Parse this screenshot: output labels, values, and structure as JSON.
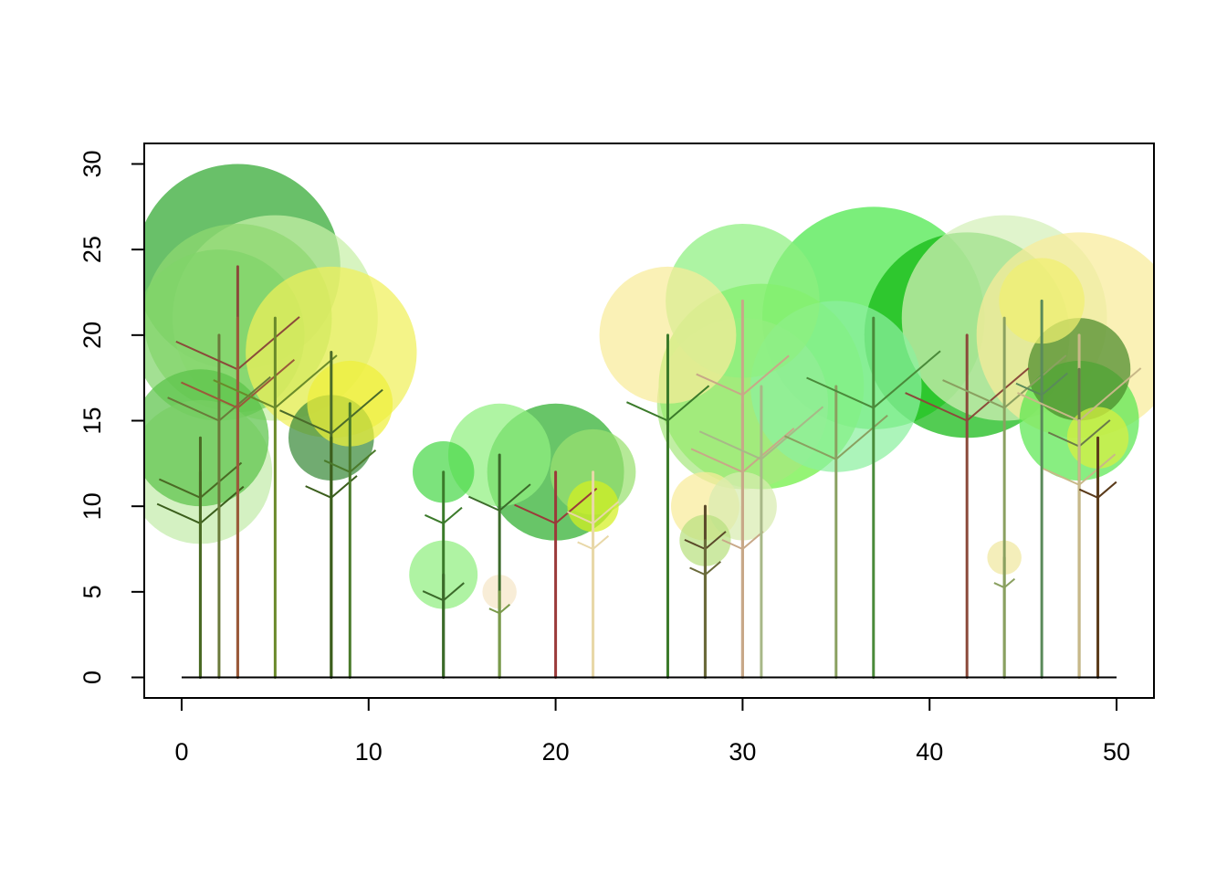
{
  "chart_data": {
    "type": "scatter",
    "title": "",
    "xlabel": "",
    "ylabel": "",
    "xlim": [
      -2,
      52
    ],
    "ylim": [
      -1.2,
      31.2
    ],
    "x_ticks": [
      0,
      10,
      20,
      30,
      40,
      50
    ],
    "x_tick_labels": [
      "0",
      "10",
      "20",
      "30",
      "40",
      "50"
    ],
    "y_ticks": [
      0,
      5,
      10,
      15,
      20,
      25,
      30
    ],
    "y_tick_labels": [
      "0",
      "5",
      "10",
      "15",
      "20",
      "25",
      "30"
    ],
    "grid": false,
    "ground_line": {
      "x_from": 0,
      "x_to": 50,
      "y": 0
    },
    "trees": [
      {
        "x": 1,
        "height": 12,
        "crown_radius": 4.2,
        "crown_color": "#c4ecaa",
        "trunk_color": "#3b5e1c"
      },
      {
        "x": 1,
        "height": 14,
        "crown_radius": 4.0,
        "crown_color": "#5bc44a",
        "trunk_color": "#4a6a24"
      },
      {
        "x": 2,
        "height": 20,
        "crown_radius": 5.0,
        "crown_color": "#7fd46a",
        "trunk_color": "#6a7a3a"
      },
      {
        "x": 3,
        "height": 24,
        "crown_radius": 6.0,
        "crown_color": "#2fa82f",
        "trunk_color": "#8b4a3a"
      },
      {
        "x": 3,
        "height": 21,
        "crown_radius": 5.5,
        "crown_color": "#8fd870",
        "trunk_color": "#9b5a3a"
      },
      {
        "x": 5,
        "height": 21,
        "crown_radius": 6.0,
        "crown_color": "#c8f0a8",
        "trunk_color": "#6a8a2a"
      },
      {
        "x": 8,
        "height": 19,
        "crown_radius": 5.0,
        "crown_color": "#f0f05a",
        "trunk_color": "#4a6a2a"
      },
      {
        "x": 8,
        "height": 14,
        "crown_radius": 2.5,
        "crown_color": "#3a8a3a",
        "trunk_color": "#3b5e1c"
      },
      {
        "x": 9,
        "height": 16,
        "crown_radius": 2.5,
        "crown_color": "#eef03a",
        "trunk_color": "#4a7a2a"
      },
      {
        "x": 14,
        "height": 12,
        "crown_radius": 1.8,
        "crown_color": "#4ad84a",
        "trunk_color": "#3b7a2a"
      },
      {
        "x": 14,
        "height": 6,
        "crown_radius": 2.0,
        "crown_color": "#90ee80",
        "trunk_color": "#3b6a2a"
      },
      {
        "x": 17,
        "height": 13,
        "crown_radius": 3.0,
        "crown_color": "#90f080",
        "trunk_color": "#3b6a2a"
      },
      {
        "x": 17,
        "height": 5,
        "crown_radius": 1.0,
        "crown_color": "#f5e6c8",
        "trunk_color": "#7a9a4a"
      },
      {
        "x": 20,
        "height": 12,
        "crown_radius": 4.0,
        "crown_color": "#2eae2e",
        "trunk_color": "#9b3a3a"
      },
      {
        "x": 22,
        "height": 12,
        "crown_radius": 2.5,
        "crown_color": "#9ae070",
        "trunk_color": "#e8d8a8"
      },
      {
        "x": 22,
        "height": 10,
        "crown_radius": 1.5,
        "crown_color": "#d4f020",
        "trunk_color": "#e8d8a8"
      },
      {
        "x": 26,
        "height": 20,
        "crown_radius": 4.0,
        "crown_color": "#f8ec9a",
        "trunk_color": "#3b7a2a"
      },
      {
        "x": 28,
        "height": 10,
        "crown_radius": 2.0,
        "crown_color": "#f8ec9a",
        "trunk_color": "#5a4a2a"
      },
      {
        "x": 28,
        "height": 8,
        "crown_radius": 1.5,
        "crown_color": "#b8e080",
        "trunk_color": "#6a6a3a"
      },
      {
        "x": 30,
        "height": 22,
        "crown_radius": 4.5,
        "crown_color": "#8ef080",
        "trunk_color": "#c8a888"
      },
      {
        "x": 30,
        "height": 16,
        "crown_radius": 5.0,
        "crown_color": "#a8e880",
        "trunk_color": "#c8a888"
      },
      {
        "x": 30,
        "height": 10,
        "crown_radius": 2.0,
        "crown_color": "#d8ecb0",
        "trunk_color": "#c8a888"
      },
      {
        "x": 31,
        "height": 17,
        "crown_radius": 6.0,
        "crown_color": "#6cf040",
        "trunk_color": "#a8b888"
      },
      {
        "x": 35,
        "height": 17,
        "crown_radius": 5.0,
        "crown_color": "#8cf0a0",
        "trunk_color": "#8aa060"
      },
      {
        "x": 37,
        "height": 21,
        "crown_radius": 6.5,
        "crown_color": "#48e848",
        "trunk_color": "#4a8a3a"
      },
      {
        "x": 42,
        "height": 20,
        "crown_radius": 6.0,
        "crown_color": "#10b810",
        "trunk_color": "#8b4a3a"
      },
      {
        "x": 44,
        "height": 21,
        "crown_radius": 6.0,
        "crown_color": "#d4f0b8",
        "trunk_color": "#8aa060"
      },
      {
        "x": 44,
        "height": 7,
        "crown_radius": 1.0,
        "crown_color": "#f0e8a0",
        "trunk_color": "#8aa060"
      },
      {
        "x": 46,
        "height": 22,
        "crown_radius": 2.5,
        "crown_color": "#f0f070",
        "trunk_color": "#5a8a5a"
      },
      {
        "x": 48,
        "height": 20,
        "crown_radius": 6.0,
        "crown_color": "#f8ec9a",
        "trunk_color": "#c8b888"
      },
      {
        "x": 48,
        "height": 18,
        "crown_radius": 3.0,
        "crown_color": "#4a8a2a",
        "trunk_color": "#6a7a4a"
      },
      {
        "x": 48,
        "height": 15,
        "crown_radius": 3.5,
        "crown_color": "#5ae850",
        "trunk_color": "#c8b888"
      },
      {
        "x": 49,
        "height": 14,
        "crown_radius": 1.8,
        "crown_color": "#d8f040",
        "trunk_color": "#5a3a1a"
      }
    ]
  }
}
